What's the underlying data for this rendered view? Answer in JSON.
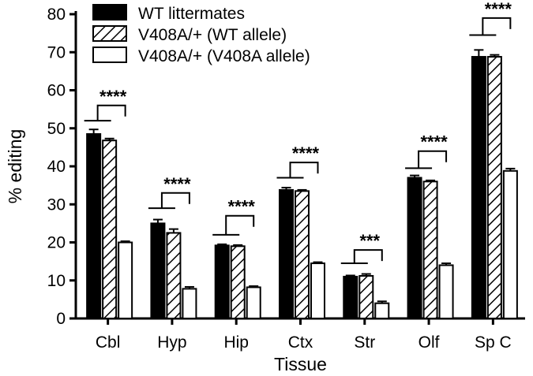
{
  "chart_data": {
    "type": "bar",
    "xlabel": "Tissue",
    "ylabel": "% editing",
    "ylim": [
      0,
      80
    ],
    "yticks": [
      0,
      10,
      20,
      30,
      40,
      50,
      60,
      70,
      80
    ],
    "categories": [
      "Cbl",
      "Hyp",
      "Hip",
      "Ctx",
      "Str",
      "Olf",
      "Sp C"
    ],
    "series": [
      {
        "name": "WT littermates",
        "values": [
          48.5,
          25,
          19.2,
          33.8,
          11,
          37,
          68.8
        ],
        "errors": [
          1.2,
          1.0,
          0.3,
          0.6,
          0.3,
          0.6,
          1.8
        ],
        "fill": "#000000",
        "pattern": "solid"
      },
      {
        "name": "V408A/+ (WT allele)",
        "values": [
          46.8,
          22.5,
          19,
          33.5,
          11.2,
          36,
          68.8
        ],
        "errors": [
          0.5,
          1.0,
          0.3,
          0.3,
          0.5,
          0.3,
          0.5
        ],
        "fill": "#ffffff",
        "pattern": "hatched"
      },
      {
        "name": "V408A/+ (V408A allele)",
        "values": [
          20,
          7.8,
          8.2,
          14.5,
          4,
          14,
          38.8
        ],
        "errors": [
          0.3,
          0.5,
          0.3,
          0.3,
          0.5,
          0.5,
          0.6
        ],
        "fill": "#ffffff",
        "pattern": "open"
      }
    ],
    "significance": [
      {
        "label": "****",
        "bracket_low": 52,
        "bracket_high": 56
      },
      {
        "label": "****",
        "bracket_low": 29,
        "bracket_high": 33
      },
      {
        "label": "****",
        "bracket_low": 22,
        "bracket_high": 27
      },
      {
        "label": "****",
        "bracket_low": 37,
        "bracket_high": 41
      },
      {
        "label": "***",
        "bracket_low": 14.5,
        "bracket_high": 18
      },
      {
        "label": "****",
        "bracket_low": 39.5,
        "bracket_high": 44
      },
      {
        "label": "****",
        "bracket_low": 74.5,
        "bracket_high": 79
      }
    ],
    "legend_position": "top-left",
    "grid": false
  }
}
